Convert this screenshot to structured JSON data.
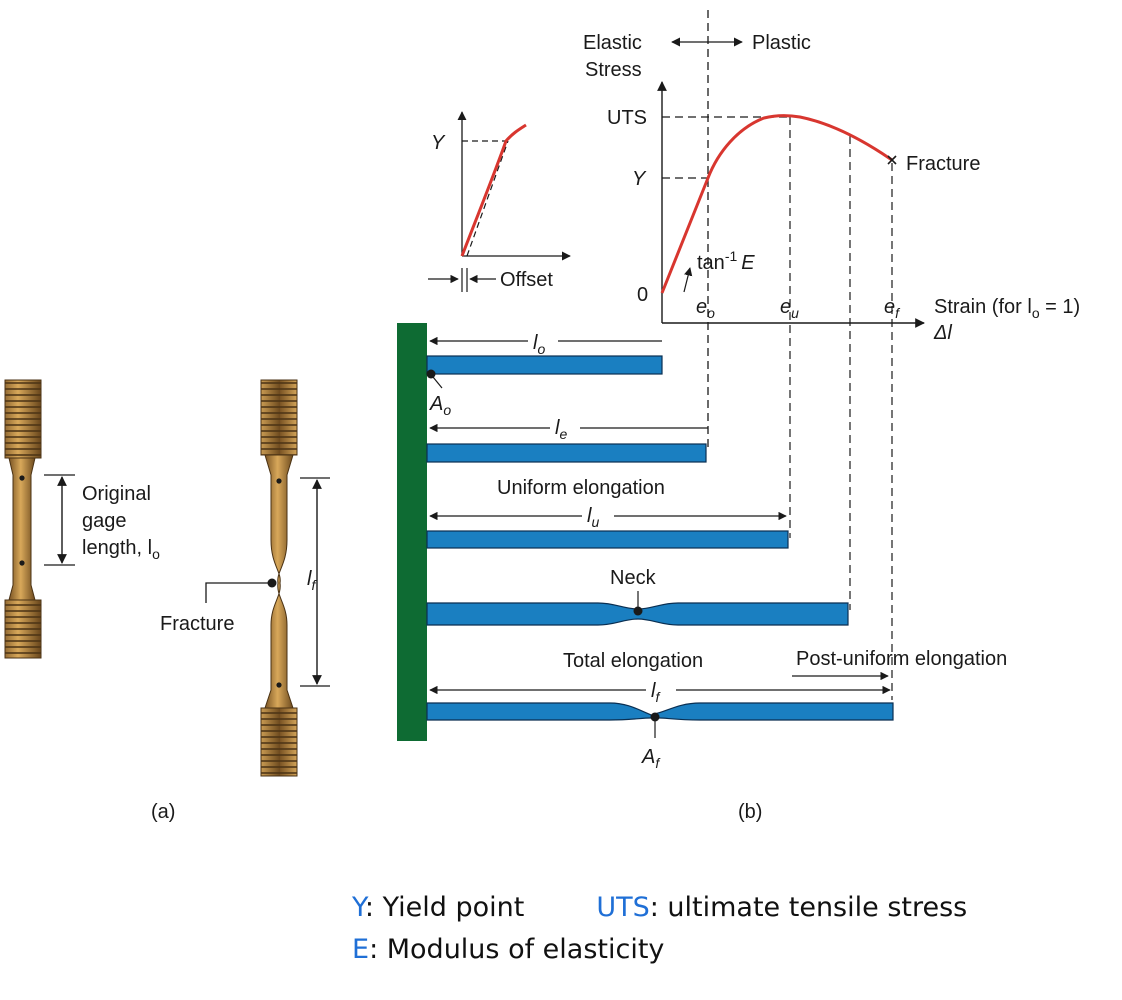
{
  "colors": {
    "curve": "#d8362f",
    "bar": "#1a7fc1",
    "bar_stroke": "#0a2f52",
    "wall": "#0e6b33",
    "specimen": "#c7954a",
    "legend_key": "#1f6fd6"
  },
  "panel_a": {
    "caption": "(a)",
    "gage_label": [
      "Original",
      "gage",
      "length, l"
    ],
    "gage_sub": "o",
    "lf_label": "l",
    "lf_sub": "f",
    "fracture": "Fracture"
  },
  "inset": {
    "y": "Y",
    "offset": "Offset"
  },
  "main_chart": {
    "elastic": "Elastic",
    "plastic": "Plastic",
    "stress": "Stress",
    "uts": "UTS",
    "y": "Y",
    "zero": "0",
    "tan_label": "tan",
    "tan_sup": "-1",
    "tan_e": "E",
    "fracture": "Fracture",
    "e_o": "e",
    "e_o_sub": "o",
    "e_u": "e",
    "e_u_sub": "u",
    "e_f": "e",
    "e_f_sub": "f",
    "strain_a": "Strain (for l",
    "strain_sub": "o",
    "strain_b": " = 1)",
    "delta_l": "Δl"
  },
  "bars": {
    "lo": "l",
    "lo_sub": "o",
    "ao": "A",
    "ao_sub": "o",
    "le": "l",
    "le_sub": "e",
    "uniform": "Uniform elongation",
    "lu": "l",
    "lu_sub": "u",
    "neck": "Neck",
    "total": "Total elongation",
    "post": "Post-uniform elongation",
    "lf": "l",
    "lf_sub": "f",
    "af": "A",
    "af_sub": "f",
    "caption": "(b)"
  },
  "legend": {
    "y_key": "Y",
    "y_text": ": Yield point",
    "uts_key": "UTS",
    "uts_text": ": ultimate tensile stress",
    "e_key": "E",
    "e_text": ": Modulus of elasticity"
  }
}
